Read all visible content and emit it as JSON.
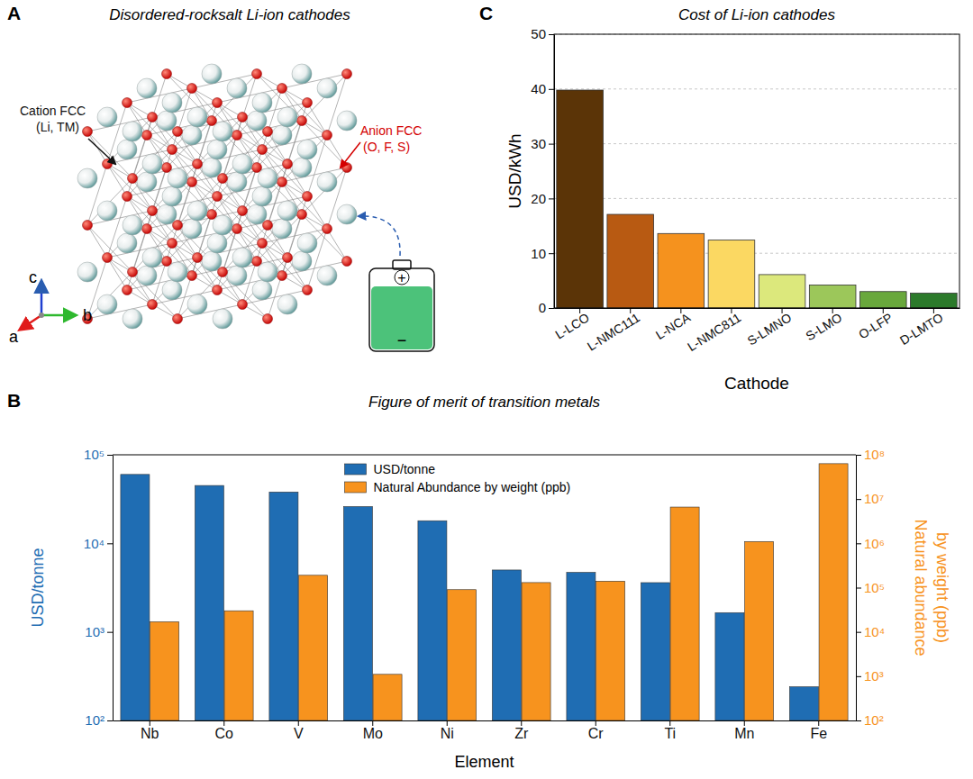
{
  "diagram": {
    "panel_label": "A",
    "title": "Disordered-rocksalt Li-ion cathodes",
    "cation_label": [
      "Cation FCC",
      "(Li, TM)"
    ],
    "anion_label": [
      "Anion FCC",
      "(O, F, S)"
    ],
    "axis_labels": [
      "a",
      "b",
      "c"
    ],
    "battery_labels": [
      "+",
      "−"
    ]
  },
  "chart_data": [
    {
      "type": "bar",
      "panel_label": "B",
      "title": "Figure of merit of transition metals",
      "xlabel": "Element",
      "ylabel": "USD/tonne",
      "y2label": [
        "Natural abundance",
        "by weight (ppb)"
      ],
      "categories": [
        "Nb",
        "Co",
        "V",
        "Mo",
        "Ni",
        "Zr",
        "Cr",
        "Ti",
        "Mn",
        "Fe"
      ],
      "series": [
        {
          "name": "USD/tonne",
          "color": "#1f6db3",
          "values": [
            60000,
            45000,
            38000,
            26000,
            18000,
            5000,
            4700,
            3600,
            1650,
            240
          ]
        },
        {
          "name": "Natural Abundance by weight (ppb)",
          "color": "#f7931e",
          "axis": "y2",
          "values": [
            17000,
            30000,
            190000,
            1100,
            90000,
            130000,
            140000,
            6600000,
            1100000,
            63000000
          ]
        }
      ],
      "log": "y",
      "legend": "top",
      "ylim": [
        100,
        100000
      ],
      "yticks": [
        {
          "value": 100,
          "label": "10²"
        },
        {
          "value": 1000,
          "label": "10³"
        },
        {
          "value": 10000,
          "label": "10⁴"
        },
        {
          "value": 100000,
          "label": "10⁵"
        }
      ],
      "y2lim": [
        100,
        100000000
      ],
      "y2ticks": [
        {
          "value": 100,
          "label": "10²"
        },
        {
          "value": 1000,
          "label": "10³"
        },
        {
          "value": 10000,
          "label": "10⁴"
        },
        {
          "value": 100000,
          "label": "10⁵"
        },
        {
          "value": 1000000,
          "label": "10⁶"
        },
        {
          "value": 10000000,
          "label": "10⁷"
        },
        {
          "value": 100000000,
          "label": "10⁸"
        }
      ]
    },
    {
      "type": "bar",
      "panel_label": "C",
      "title": "Cost of Li-ion cathodes",
      "xlabel": "Cathode",
      "ylabel": "USD/kWh",
      "categories": [
        "L-LCO",
        "L-NMC111",
        "L-NCA",
        "L-NMC811",
        "S-LMNO",
        "S-LMO",
        "O-LFP",
        "D-LMTO"
      ],
      "values": [
        39.8,
        17.1,
        13.6,
        12.4,
        6.1,
        4.2,
        3.0,
        2.7
      ],
      "colors": [
        "#5b3407",
        "#b85a12",
        "#f5921e",
        "#fbd862",
        "#dce87c",
        "#9cc75a",
        "#69a83c",
        "#2c7a2b"
      ],
      "ylim": [
        0,
        50
      ],
      "yticks": [
        0,
        10,
        20,
        30,
        40,
        50
      ],
      "grid": true
    }
  ]
}
